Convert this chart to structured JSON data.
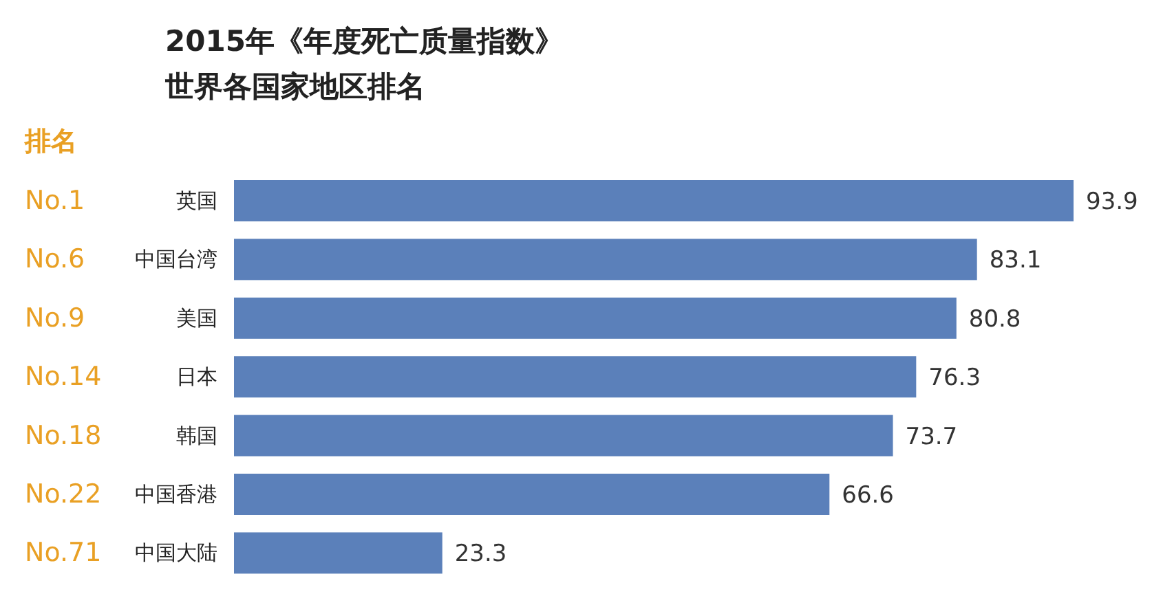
{
  "chart_data": {
    "type": "bar",
    "orientation": "horizontal",
    "title": "2015年《年度死亡质量指数》",
    "subtitle": "世界各国家地区排名",
    "categories": [
      "英国",
      "中国台湾",
      "美国",
      "日本",
      "韩国",
      "中国香港",
      "中国大陆"
    ],
    "values": [
      93.9,
      83.1,
      80.8,
      76.3,
      73.7,
      66.6,
      23.3
    ],
    "color": "#5b80ba",
    "data_labels": true,
    "annotations": [
      "排名",
      "No.1",
      "No.6",
      "No.9",
      "No.14",
      "No.18",
      "No.22",
      "No.71"
    ]
  }
}
